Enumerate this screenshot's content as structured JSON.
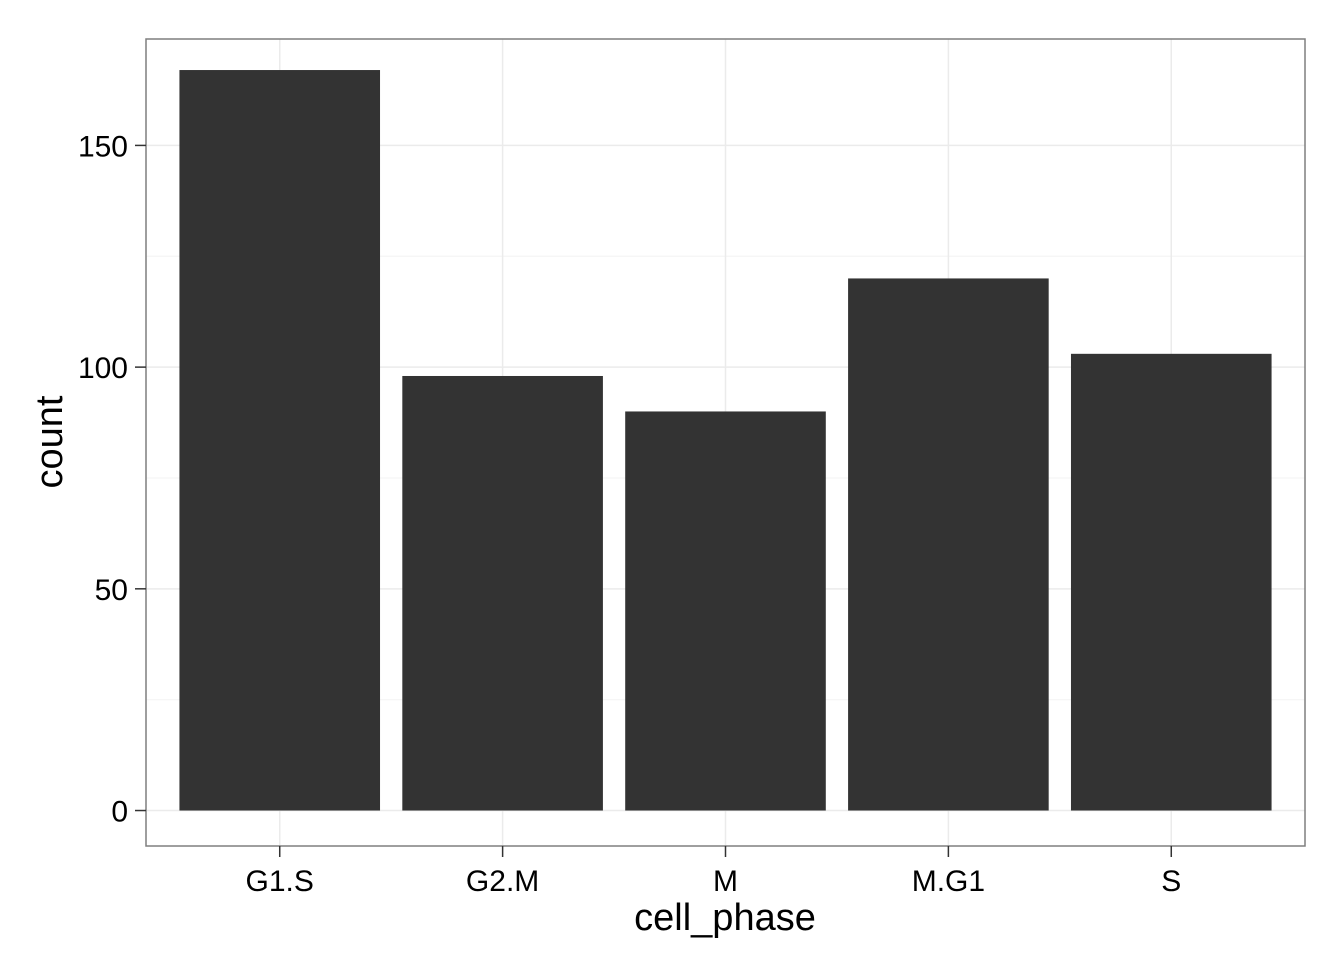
{
  "chart_data": {
    "type": "bar",
    "categories": [
      "G1.S",
      "G2.M",
      "M",
      "M.G1",
      "S"
    ],
    "values": [
      167,
      98,
      90,
      120,
      103
    ],
    "title": "",
    "xlabel": "cell_phase",
    "ylabel": "count",
    "ylim": [
      -8,
      174
    ],
    "yticks": [
      0,
      50,
      100,
      150
    ],
    "grid": true,
    "legend": "none",
    "colors": {
      "bar": "#333333",
      "background": "#ffffff",
      "grid": "#ebebeb",
      "panel_border": "#7f7f7f",
      "tick": "#333333"
    }
  }
}
